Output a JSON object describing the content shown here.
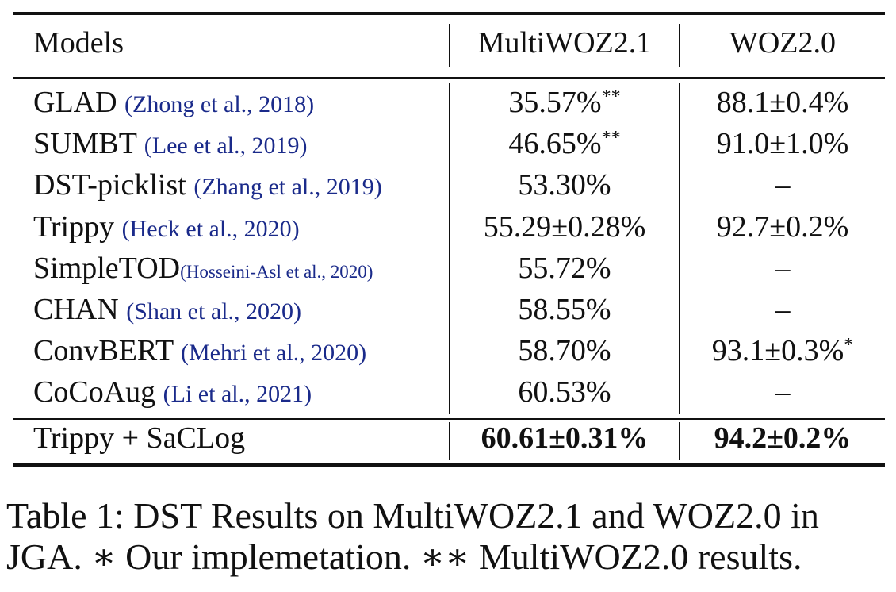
{
  "table": {
    "headers": [
      "Models",
      "MultiWOZ2.1",
      "WOZ2.0"
    ],
    "rows": [
      {
        "model": "GLAD",
        "cite": "(Zhong et al., 2018)",
        "multiwoz": "35.57%",
        "multiwoz_sup": "**",
        "woz": "88.1±0.4%",
        "woz_sup": ""
      },
      {
        "model": "SUMBT",
        "cite": "(Lee et al., 2019)",
        "multiwoz": "46.65%",
        "multiwoz_sup": "**",
        "woz": "91.0±1.0%",
        "woz_sup": ""
      },
      {
        "model": "DST-picklist",
        "cite": "(Zhang et al., 2019)",
        "multiwoz": "53.30%",
        "multiwoz_sup": "",
        "woz": "–",
        "woz_sup": ""
      },
      {
        "model": "Trippy",
        "cite": "(Heck et al., 2020)",
        "multiwoz": "55.29±0.28%",
        "multiwoz_sup": "",
        "woz": "92.7±0.2%",
        "woz_sup": ""
      },
      {
        "model": "SimpleTOD",
        "cite": "(Hosseini-Asl et al., 2020)",
        "multiwoz": "55.72%",
        "multiwoz_sup": "",
        "woz": "–",
        "woz_sup": ""
      },
      {
        "model": "CHAN",
        "cite": "(Shan et al., 2020)",
        "multiwoz": "58.55%",
        "multiwoz_sup": "",
        "woz": "–",
        "woz_sup": ""
      },
      {
        "model": "ConvBERT",
        "cite": "(Mehri et al., 2020)",
        "multiwoz": "58.70%",
        "multiwoz_sup": "",
        "woz": "93.1±0.3%",
        "woz_sup": "*"
      },
      {
        "model": "CoCoAug",
        "cite": "(Li et al., 2021)",
        "multiwoz": "60.53%",
        "multiwoz_sup": "",
        "woz": "–",
        "woz_sup": ""
      }
    ],
    "ours": {
      "model": "Trippy + SaCLog",
      "multiwoz": "60.61±0.31%",
      "woz": "94.2±0.2%"
    }
  },
  "caption": {
    "line1": "Table 1: DST Results on MultiWOZ2.1 and WOZ2.0 in",
    "line2": "JGA. ∗ Our implemetation. ∗∗ MultiWOZ2.0 results."
  },
  "colors": {
    "citation": "#1a2a8a",
    "text": "#111111"
  }
}
